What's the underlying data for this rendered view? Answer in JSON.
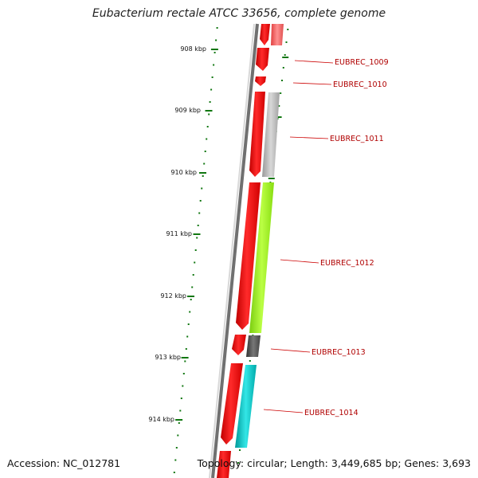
{
  "title": "Eubacterium rectale ATCC 33656, complete genome",
  "footer": {
    "accession": "Accession: NC_012781",
    "summary": "Topology: circular; Length: 3,449,685 bp; Genes: 3,693"
  },
  "scale_labels": [
    "908 kbp",
    "909 kbp",
    "910 kbp",
    "911 kbp",
    "912 kbp",
    "913 kbp",
    "914 kbp"
  ],
  "genes": [
    {
      "label": "EUBREC_1009",
      "color": "#f04a4a"
    },
    {
      "label": "EUBREC_1010",
      "color": "#ff0000"
    },
    {
      "label": "EUBREC_1011",
      "color": "#b0b0b0"
    },
    {
      "label": "EUBREC_1012",
      "color": "#99ee22"
    },
    {
      "label": "EUBREC_1013",
      "color": "#555555"
    },
    {
      "label": "EUBREC_1014",
      "color": "#11cccc"
    }
  ],
  "colors": {
    "cds": "#ff0000",
    "backbone": "#707070",
    "scale": "#117711",
    "label": "#b00000"
  }
}
